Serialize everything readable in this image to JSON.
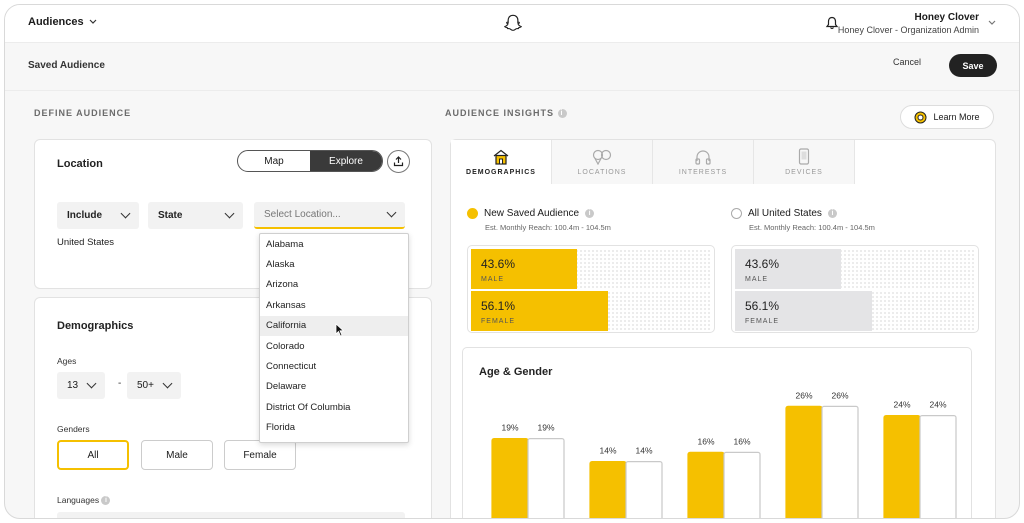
{
  "topbar": {
    "org": "Audiences",
    "user_name": "Honey Clover",
    "user_role": "Honey Clover - Organization Admin"
  },
  "page": {
    "title": "Saved Audience",
    "cancel_label": "Cancel",
    "save_label": "Save"
  },
  "define": {
    "section_label": "DEFINE AUDIENCE",
    "location": {
      "title": "Location",
      "mode_map": "Map",
      "mode_explore": "Explore",
      "include_label": "Include",
      "type_label": "State",
      "select_placeholder": "Select Location...",
      "selected_value": "United States",
      "options": [
        "Alabama",
        "Alaska",
        "Arizona",
        "Arkansas",
        "California",
        "Colorado",
        "Connecticut",
        "Delaware",
        "District Of Columbia",
        "Florida"
      ]
    },
    "demographics": {
      "title": "Demographics",
      "ages_label": "Ages",
      "age_min": "13",
      "age_max": "50+",
      "age_dash": "-",
      "genders_label": "Genders",
      "gender_all": "All",
      "gender_male": "Male",
      "gender_female": "Female",
      "languages_label": "Languages"
    }
  },
  "insights": {
    "section_label": "AUDIENCE INSIGHTS",
    "learn_more": "Learn More",
    "tabs": [
      {
        "label": "DEMOGRAPHICS",
        "icon": "house-icon",
        "active": true
      },
      {
        "label": "LOCATIONS",
        "icon": "map-pin-icon",
        "active": false
      },
      {
        "label": "INTERESTS",
        "icon": "headphones-icon",
        "active": false
      },
      {
        "label": "DEVICES",
        "icon": "phone-icon",
        "active": false
      }
    ],
    "new_audience": {
      "name": "New Saved Audience",
      "reach": "Est. Monthly Reach: 100.4m - 104.5m"
    },
    "all_us": {
      "name": "All United States",
      "reach": "Est. Monthly Reach: 100.4m - 104.5m"
    },
    "new_male": {
      "value": "43.6%",
      "label": "MALE",
      "fraction": 0.436
    },
    "new_female": {
      "value": "56.1%",
      "label": "FEMALE",
      "fraction": 0.561
    },
    "us_male": {
      "value": "43.6%",
      "label": "MALE",
      "fraction": 0.436
    },
    "us_female": {
      "value": "56.1%",
      "label": "FEMALE",
      "fraction": 0.561
    },
    "colors": {
      "accent": "#f5c000",
      "neutral": "#e4e4e6"
    }
  },
  "chart_data": {
    "type": "bar",
    "title": "Age & Gender",
    "series": [
      {
        "values": [
          19,
          14,
          16,
          26,
          24
        ]
      },
      {
        "values": [
          19,
          14,
          16,
          26,
          24
        ]
      }
    ],
    "ylim": [
      0,
      30
    ]
  }
}
